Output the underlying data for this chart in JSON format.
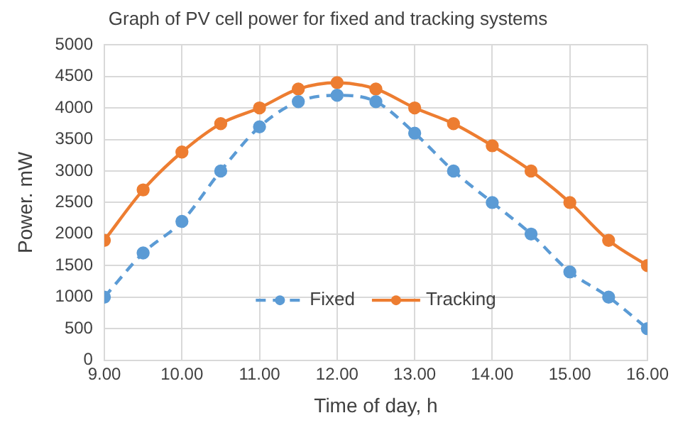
{
  "chart_data": {
    "type": "line",
    "title": "Graph of PV cell power for fixed and tracking systems",
    "xlabel": "Time of day, h",
    "ylabel": "Power. mW",
    "x": [
      9,
      9.5,
      10,
      10.5,
      11,
      11.5,
      12,
      12.5,
      13,
      13.5,
      14,
      14.5,
      15,
      15.5,
      16
    ],
    "series": [
      {
        "name": "Fixed",
        "color": "#5b9bd5",
        "line_style": "dashed",
        "values": [
          1000,
          1700,
          2200,
          3000,
          3700,
          4100,
          4200,
          4100,
          3600,
          3000,
          2500,
          2000,
          1400,
          1000,
          500
        ]
      },
      {
        "name": "Tracking",
        "color": "#ed7d31",
        "line_style": "solid",
        "values": [
          1900,
          2700,
          3300,
          3750,
          4000,
          4300,
          4400,
          4300,
          4000,
          3750,
          3400,
          3000,
          2500,
          1900,
          1500
        ]
      }
    ],
    "xlim": [
      9,
      16
    ],
    "xticks": [
      {
        "value": 9,
        "label": "9.00"
      },
      {
        "value": 10,
        "label": "10.00"
      },
      {
        "value": 11,
        "label": "11.00"
      },
      {
        "value": 12,
        "label": "12.00"
      },
      {
        "value": 13,
        "label": "13.00"
      },
      {
        "value": 14,
        "label": "14.00"
      },
      {
        "value": 15,
        "label": "15.00"
      },
      {
        "value": 16,
        "label": "16.00"
      }
    ],
    "ylim": [
      0,
      5000
    ],
    "yticks": [
      0,
      500,
      1000,
      1500,
      2000,
      2500,
      3000,
      3500,
      4000,
      4500,
      5000
    ],
    "grid": true,
    "legend": "bottom",
    "marker": "circle"
  }
}
